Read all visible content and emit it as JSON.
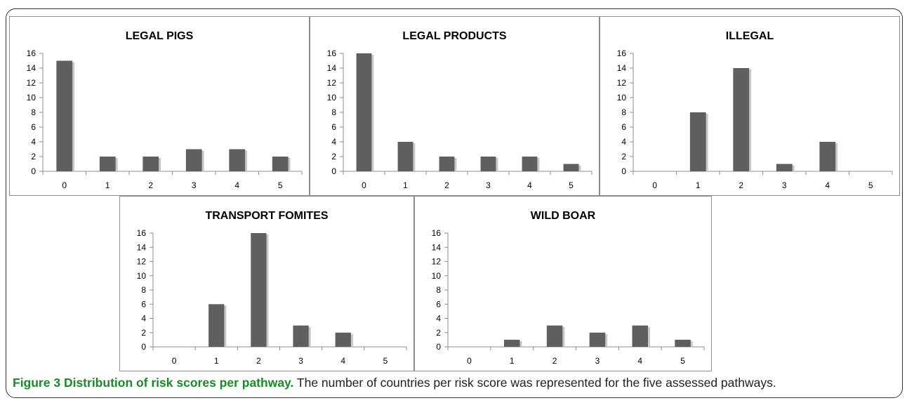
{
  "chart_data": [
    {
      "type": "bar",
      "title": "LEGAL PIGS",
      "categories": [
        "0",
        "1",
        "2",
        "3",
        "4",
        "5"
      ],
      "values": [
        15,
        2,
        2,
        3,
        3,
        2
      ],
      "ylim": [
        0,
        16
      ],
      "yticks": [
        0,
        2,
        4,
        6,
        8,
        10,
        12,
        14,
        16
      ],
      "grid": false,
      "bar_color": "#5f5f5f"
    },
    {
      "type": "bar",
      "title": "LEGAL PRODUCTS",
      "categories": [
        "0",
        "1",
        "2",
        "3",
        "4",
        "5"
      ],
      "values": [
        16,
        4,
        2,
        2,
        2,
        1
      ],
      "ylim": [
        0,
        16
      ],
      "yticks": [
        0,
        2,
        4,
        6,
        8,
        10,
        12,
        14,
        16
      ],
      "grid": false,
      "bar_color": "#5f5f5f"
    },
    {
      "type": "bar",
      "title": "ILLEGAL",
      "categories": [
        "0",
        "1",
        "2",
        "3",
        "4",
        "5"
      ],
      "values": [
        0,
        8,
        14,
        1,
        4,
        0
      ],
      "ylim": [
        0,
        16
      ],
      "yticks": [
        0,
        2,
        4,
        6,
        8,
        10,
        12,
        14,
        16
      ],
      "grid": false,
      "bar_color": "#5f5f5f"
    },
    {
      "type": "bar",
      "title": "TRANSPORT FOMITES",
      "categories": [
        "0",
        "1",
        "2",
        "3",
        "4",
        "5"
      ],
      "values": [
        0,
        6,
        16,
        3,
        2,
        0
      ],
      "ylim": [
        0,
        16
      ],
      "yticks": [
        0,
        2,
        4,
        6,
        8,
        10,
        12,
        14,
        16
      ],
      "grid": false,
      "bar_color": "#5f5f5f"
    },
    {
      "type": "bar",
      "title": "WILD BOAR",
      "categories": [
        "0",
        "1",
        "2",
        "3",
        "4",
        "5"
      ],
      "values": [
        0,
        1,
        3,
        2,
        3,
        1
      ],
      "ylim": [
        0,
        16
      ],
      "yticks": [
        0,
        2,
        4,
        6,
        8,
        10,
        12,
        14,
        16
      ],
      "grid": false,
      "bar_color": "#5f5f5f"
    }
  ],
  "caption": {
    "number": "Figure 3",
    "title": "Distribution of risk scores per pathway.",
    "text": "The number of countries per risk score was represented for the five assessed pathways."
  },
  "colors": {
    "bar": "#5f5f5f",
    "bar_shadow": "#c8c8c8",
    "caption_accent": "#1a8a28",
    "panel_border": "#8c8c8c"
  }
}
